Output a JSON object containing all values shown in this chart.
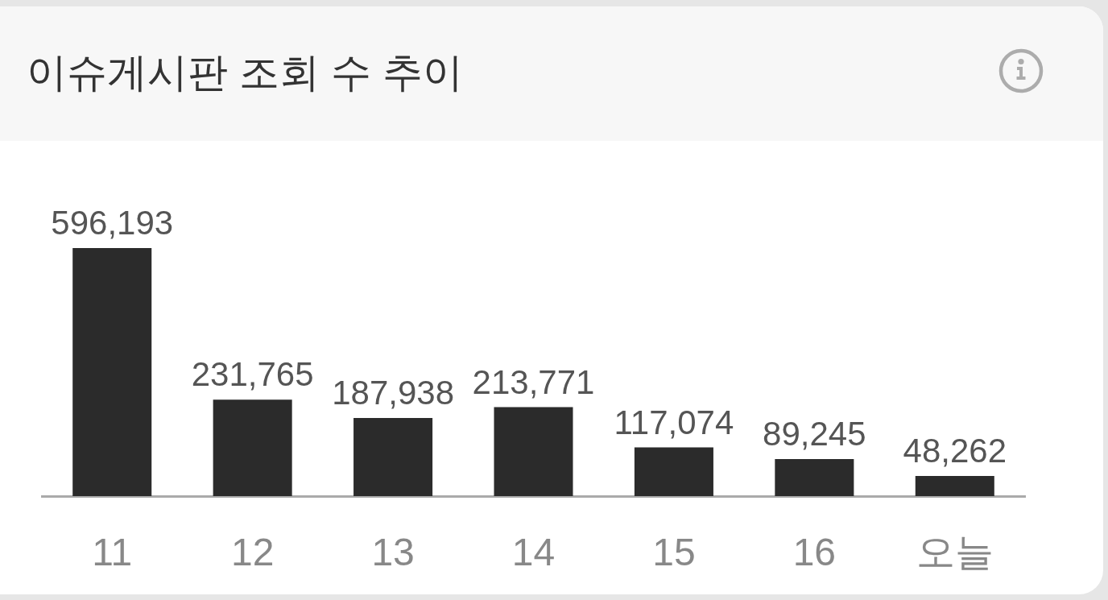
{
  "chart_data": {
    "type": "bar",
    "title": "이슈게시판 조회 수 추이",
    "categories": [
      "11",
      "12",
      "13",
      "14",
      "15",
      "16",
      "오늘"
    ],
    "values": [
      596193,
      231765,
      187938,
      213771,
      117074,
      89245,
      48262
    ],
    "value_labels": [
      "596,193",
      "231,765",
      "187,938",
      "213,771",
      "117,074",
      "89,245",
      "48,262"
    ],
    "color": "#2b2b2b",
    "tick_labels": "x"
  }
}
